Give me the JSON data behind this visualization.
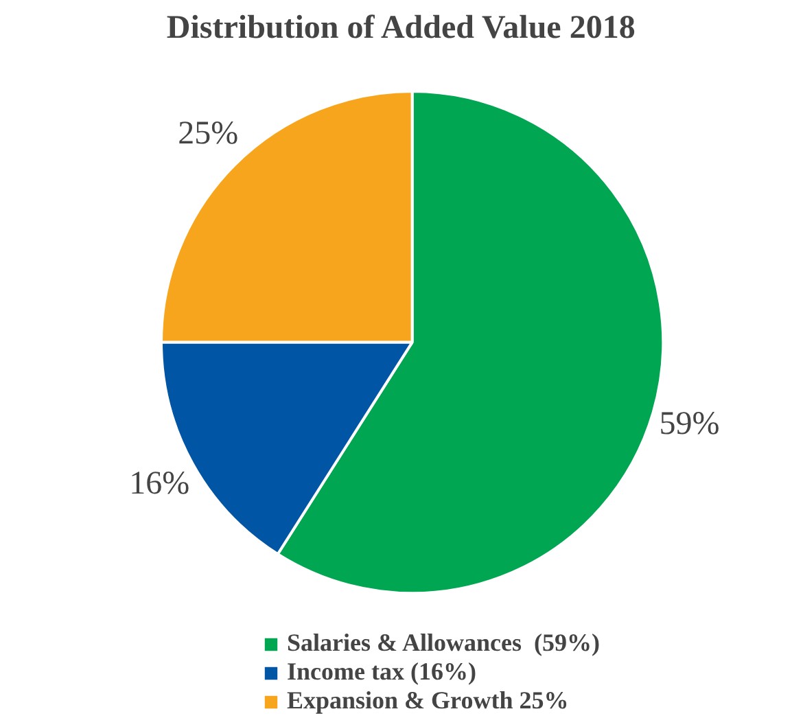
{
  "chart_data": {
    "type": "pie",
    "title": "Distribution of Added Value 2018",
    "categories": [
      "Salaries & Allowances  (59%)",
      "Income tax (16%)",
      "Expansion & Growth 25%"
    ],
    "values": [
      59,
      16,
      25
    ],
    "colors": [
      "#00a651",
      "#0055a5",
      "#f7a51c"
    ],
    "value_labels": [
      "59%",
      "16%",
      "25%"
    ],
    "legend": "bottom"
  }
}
